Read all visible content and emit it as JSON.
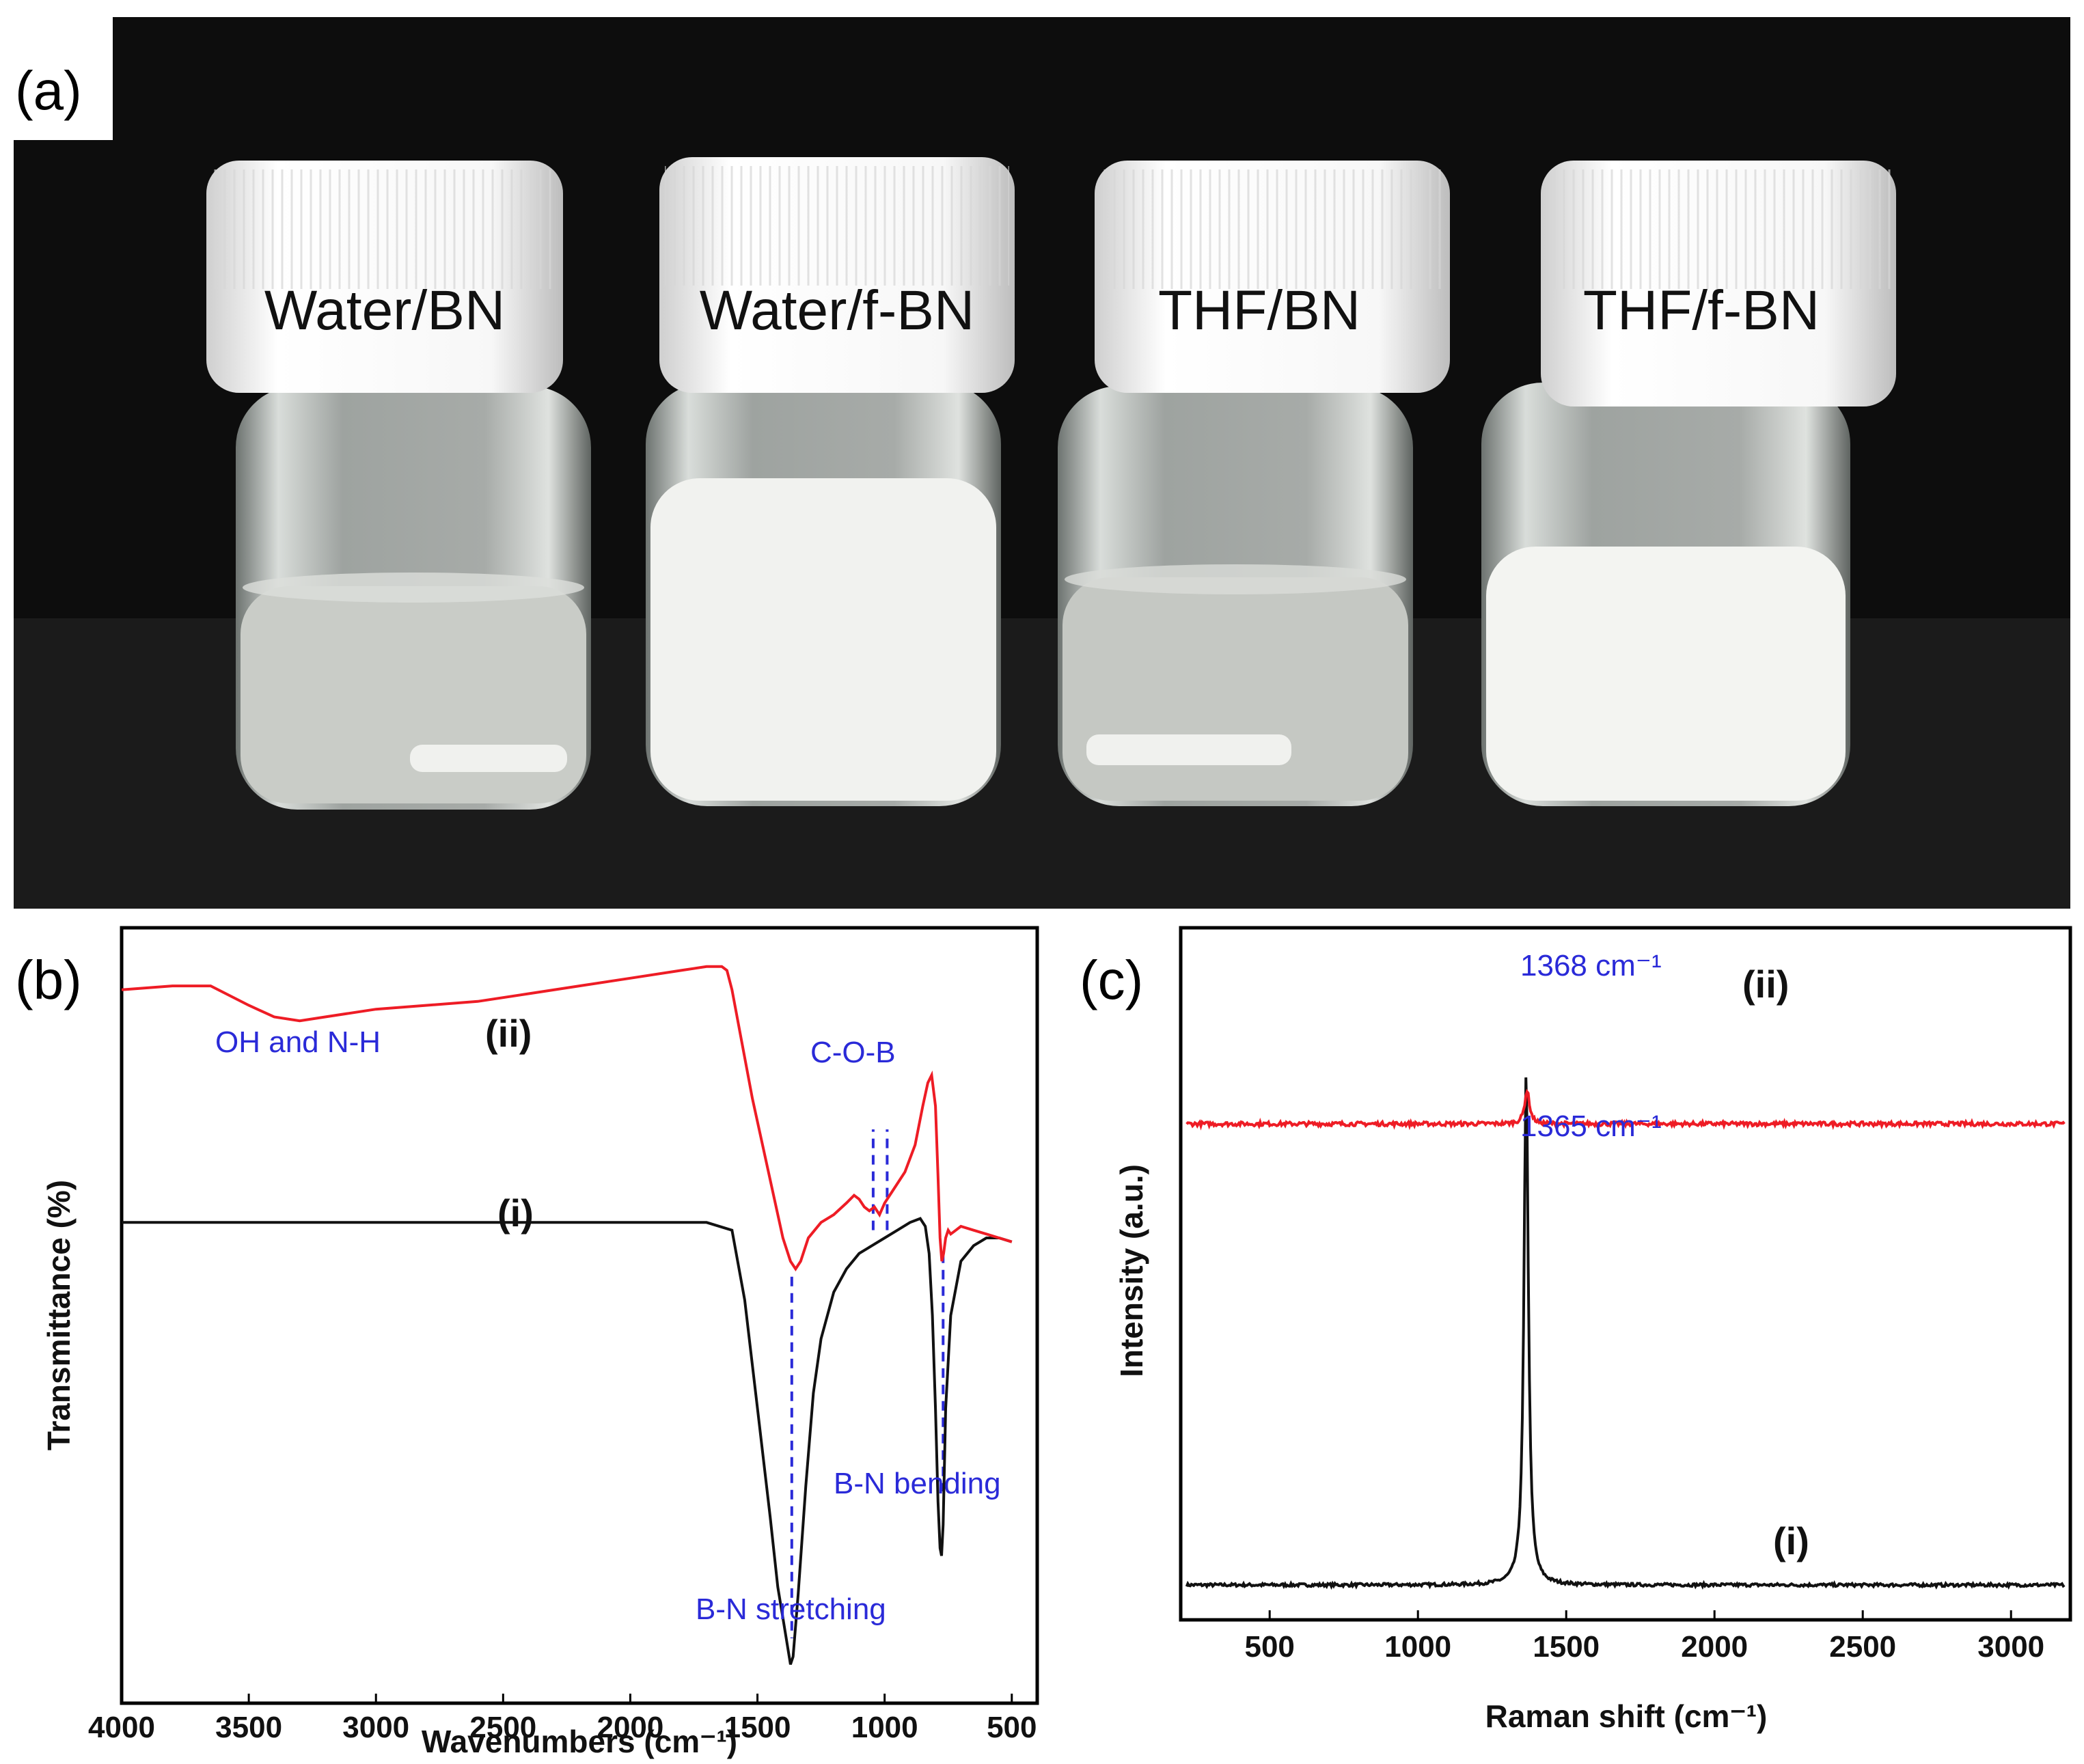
{
  "panel_a": {
    "letter": "(a)",
    "vials": [
      {
        "label": "Water/BN",
        "liquid": "#c9ccc7",
        "sediment": true
      },
      {
        "label": "Water/f-BN",
        "liquid": "#f1f2ef",
        "sediment": false
      },
      {
        "label": "THF/BN",
        "liquid": "#c5c8c3",
        "sediment": true
      },
      {
        "label": "THF/f-BN",
        "liquid": "#f3f4f1",
        "sediment": false
      }
    ]
  },
  "panel_b": {
    "letter": "(b)",
    "annotations": {
      "oh_nh": "OH and N-H",
      "cob": "C-O-B",
      "bn_stretching": "B-N stretching",
      "bn_bending": "B-N bending"
    }
  },
  "panel_c": {
    "letter": "(c)",
    "peaks": {
      "ii_value": "1368",
      "i_value": "1365",
      "unit": "cm⁻¹"
    }
  },
  "colors": {
    "series_i": "#111111",
    "series_ii": "#ee1c25",
    "annot": "#2a2ad8"
  },
  "chart_data": [
    {
      "type": "line",
      "title": "",
      "xlabel": "Wavenumbers (cm⁻¹)",
      "ylabel": "Transmittance (%)",
      "xlim": [
        4000,
        400
      ],
      "ylim": [
        0,
        100
      ],
      "xticks": [
        4000,
        3500,
        3000,
        2500,
        2000,
        1500,
        1000,
        500
      ],
      "grid": false,
      "series": [
        {
          "name": "(i)",
          "label": "(i)",
          "x": [
            4000,
            3500,
            3000,
            2500,
            2000,
            1700,
            1600,
            1550,
            1500,
            1450,
            1420,
            1400,
            1380,
            1370,
            1360,
            1340,
            1310,
            1280,
            1250,
            1200,
            1150,
            1100,
            1050,
            1000,
            950,
            900,
            860,
            840,
            825,
            812,
            800,
            790,
            782,
            776,
            770,
            760,
            740,
            700,
            650,
            600,
            550,
            500
          ],
          "y": [
            62,
            62,
            62,
            62,
            62,
            62,
            61,
            52,
            38,
            24,
            15,
            11,
            7,
            5,
            6,
            14,
            28,
            40,
            47,
            53,
            56,
            58,
            59,
            60,
            61,
            62,
            62.5,
            61.5,
            58,
            50,
            38,
            26,
            20,
            19,
            23,
            38,
            50,
            57,
            59,
            60,
            60,
            59.5
          ]
        },
        {
          "name": "(ii)",
          "label": "(ii)",
          "x": [
            4000,
            3800,
            3650,
            3500,
            3400,
            3300,
            3200,
            3000,
            2800,
            2600,
            2400,
            2200,
            2000,
            1800,
            1700,
            1640,
            1620,
            1600,
            1560,
            1520,
            1480,
            1440,
            1400,
            1370,
            1350,
            1330,
            1300,
            1250,
            1200,
            1150,
            1120,
            1100,
            1080,
            1060,
            1040,
            1020,
            1000,
            980,
            950,
            920,
            880,
            850,
            830,
            815,
            800,
            790,
            782,
            775,
            768,
            760,
            750,
            740,
            720,
            700,
            650,
            600,
            550,
            500
          ],
          "y": [
            92,
            92.5,
            92.5,
            90,
            88.5,
            88,
            88.5,
            89.5,
            90,
            90.5,
            91.5,
            92.5,
            93.5,
            94.5,
            95,
            95,
            94.5,
            92,
            85,
            78,
            72,
            66,
            60,
            57,
            56,
            57,
            60,
            62,
            63,
            64.5,
            65.5,
            65,
            64,
            63.5,
            64,
            63,
            64.5,
            65.5,
            67,
            68.5,
            72,
            77,
            80,
            81,
            77,
            68,
            60,
            57,
            58,
            60,
            61,
            60.5,
            61,
            61.5,
            61,
            60.5,
            60,
            59.5
          ]
        }
      ],
      "annotations": [
        "OH and N-H",
        "C-O-B",
        "B-N stretching",
        "B-N bending"
      ],
      "reference_lines_x": [
        1365,
        1045,
        990,
        770
      ]
    },
    {
      "type": "line",
      "title": "",
      "xlabel": "Raman shift (cm⁻¹)",
      "ylabel": "Intensity (a.u.)",
      "xlim": [
        200,
        3200
      ],
      "ylim": [
        0,
        100
      ],
      "xticks": [
        500,
        1000,
        1500,
        2000,
        2500,
        3000
      ],
      "grid": false,
      "series": [
        {
          "name": "(i)",
          "label": "(i)",
          "baseline": 2,
          "noise": 0.3,
          "peak_center": 1365,
          "peak_height": 100,
          "peak_width": 9
        },
        {
          "name": "(ii)",
          "label": "(ii)",
          "baseline": 92,
          "noise": 0.4,
          "peak_center": 1368,
          "peak_height": 6.5,
          "peak_width": 10
        }
      ],
      "annotations": [
        "1368 cm⁻¹",
        "1365 cm⁻¹"
      ]
    }
  ]
}
